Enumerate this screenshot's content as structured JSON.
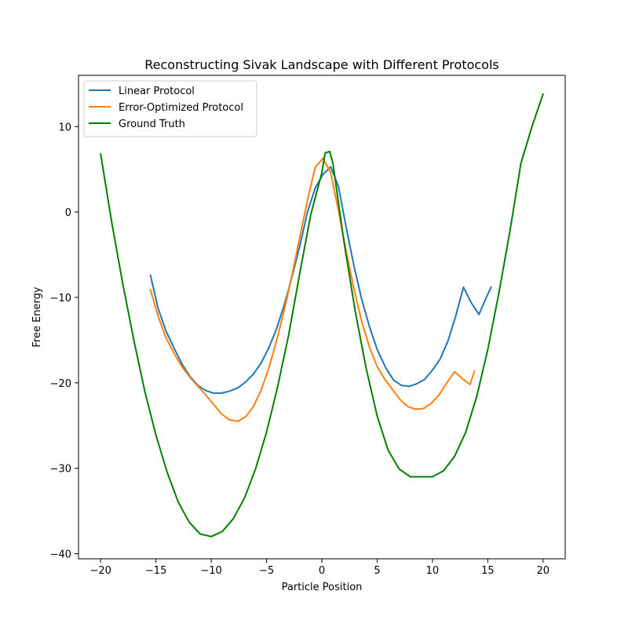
{
  "chart_data": {
    "type": "line",
    "title": "Reconstructing Sivak Landscape with Different Protocols",
    "xlabel": "Particle Position",
    "ylabel": "Free Energy",
    "xlim": [
      -22.0,
      22.0
    ],
    "ylim": [
      -40.6,
      16.0
    ],
    "xticks": [
      -20,
      -15,
      -10,
      -5,
      0,
      5,
      10,
      15,
      20
    ],
    "yticks": [
      -40,
      -30,
      -20,
      -10,
      0,
      10
    ],
    "grid": false,
    "legend_position": "upper-left",
    "series": [
      {
        "name": "Linear Protocol",
        "color": "#1f77b4",
        "x": [
          -15.5,
          -14.8,
          -14.1,
          -13.3,
          -12.6,
          -11.9,
          -11.2,
          -10.5,
          -9.8,
          -9.1,
          -8.4,
          -7.6,
          -6.9,
          -6.2,
          -5.5,
          -4.8,
          -4.1,
          -3.4,
          -2.7,
          -2.0,
          -1.3,
          -0.6,
          0.1,
          0.8,
          1.5,
          2.2,
          2.9,
          3.6,
          4.3,
          5.0,
          5.8,
          6.5,
          7.2,
          7.9,
          8.6,
          9.3,
          10.0,
          10.7,
          11.4,
          12.1,
          12.8,
          13.5,
          14.2,
          14.9,
          15.3
        ],
        "y": [
          -7.4,
          -11.3,
          -13.9,
          -16.1,
          -17.9,
          -19.3,
          -20.3,
          -20.9,
          -21.2,
          -21.2,
          -21.0,
          -20.6,
          -19.9,
          -19.0,
          -17.7,
          -15.9,
          -13.7,
          -10.9,
          -7.6,
          -4.0,
          0.0,
          2.8,
          4.4,
          5.3,
          3.0,
          -1.8,
          -6.3,
          -10.2,
          -13.4,
          -16.1,
          -18.3,
          -19.7,
          -20.3,
          -20.4,
          -20.1,
          -19.6,
          -18.5,
          -17.2,
          -15.1,
          -12.2,
          -8.8,
          -10.6,
          -12.0,
          -9.9,
          -8.8
        ]
      },
      {
        "name": "Error-Optimized Protocol",
        "color": "#ff7f0e",
        "x": [
          -15.5,
          -14.8,
          -14.1,
          -13.3,
          -12.6,
          -11.9,
          -11.2,
          -10.5,
          -9.8,
          -9.1,
          -8.4,
          -7.6,
          -6.9,
          -6.2,
          -5.5,
          -4.8,
          -4.1,
          -3.4,
          -2.7,
          -2.0,
          -1.3,
          -0.6,
          0.1,
          0.8,
          1.5,
          2.2,
          2.9,
          3.6,
          4.3,
          5.0,
          5.7,
          6.4,
          7.1,
          7.8,
          8.5,
          9.2,
          9.9,
          10.6,
          11.3,
          12.0,
          12.7,
          13.4,
          13.8
        ],
        "y": [
          -9.1,
          -12.2,
          -14.7,
          -16.7,
          -18.2,
          -19.4,
          -20.4,
          -21.4,
          -22.5,
          -23.6,
          -24.3,
          -24.5,
          -24.0,
          -22.8,
          -20.9,
          -18.3,
          -15.1,
          -11.5,
          -7.4,
          -3.0,
          1.4,
          5.2,
          6.3,
          4.6,
          0.2,
          -4.6,
          -9.0,
          -12.8,
          -15.8,
          -18.1,
          -19.6,
          -20.8,
          -22.0,
          -22.8,
          -23.1,
          -23.0,
          -22.4,
          -21.4,
          -20.0,
          -18.7,
          -19.5,
          -20.2,
          -18.6
        ]
      },
      {
        "name": "Ground Truth",
        "color": "#008000",
        "x": [
          -20,
          -19,
          -18,
          -17,
          -16,
          -15,
          -14,
          -13,
          -12,
          -11,
          -10,
          -9,
          -8,
          -7,
          -6,
          -5,
          -4,
          -3,
          -2,
          -1,
          0,
          0.3,
          0.7,
          1,
          2,
          3,
          4,
          5,
          6,
          7,
          8,
          9,
          10,
          11,
          12,
          13,
          14,
          15,
          16,
          17,
          18,
          19,
          20
        ],
        "y": [
          6.8,
          -1.2,
          -8.4,
          -15.0,
          -21.0,
          -26.1,
          -30.4,
          -33.9,
          -36.3,
          -37.7,
          -38.0,
          -37.4,
          -35.9,
          -33.5,
          -30.1,
          -25.8,
          -20.5,
          -14.4,
          -7.2,
          -0.3,
          4.6,
          6.9,
          7.1,
          5.7,
          -3.5,
          -11.5,
          -18.3,
          -23.9,
          -27.9,
          -30.1,
          -31.0,
          -31.0,
          -31.0,
          -30.3,
          -28.6,
          -25.8,
          -21.6,
          -16.1,
          -9.5,
          -2.3,
          5.7,
          10.0,
          13.8
        ]
      }
    ]
  }
}
